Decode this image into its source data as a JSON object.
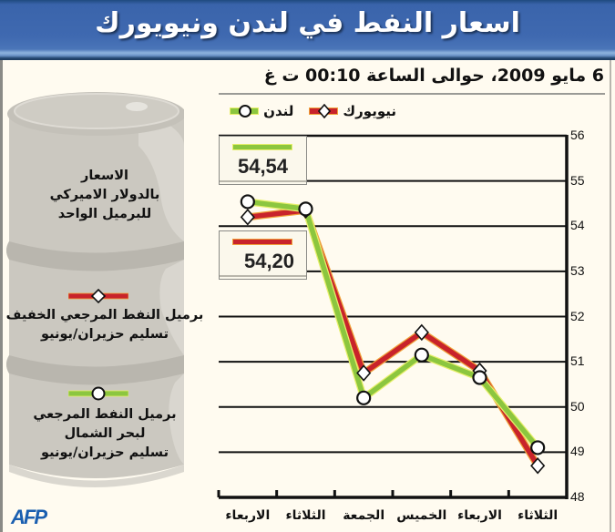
{
  "header": {
    "title": "اسعار النفط في لندن ونيويورك",
    "subtitle": "6 مايو 2009، حوالى الساعة 00:10 ت غ"
  },
  "legend": {
    "newyork_label": "نيويورك",
    "london_label": "لندن"
  },
  "barrel": {
    "units_line1": "الاسعار",
    "units_line2": "بالدولار الاميركي",
    "units_line3": "للبرميل الواحد",
    "light_line1": "برميل النفط المرجعي الخفيف",
    "light_line2": "تسليم حزيران/يونيو",
    "brent_line1": "برميل النفط المرجعي",
    "brent_line2": "لبحر الشمال",
    "brent_line3": "تسليم حزيران/يونيو"
  },
  "value_boxes": {
    "london_value": "54,54",
    "newyork_value": "54,20"
  },
  "source": "AFP",
  "colors": {
    "title_bar": "#3f69b0",
    "background": "#fffbf0",
    "london_line": "#8cc63f",
    "newyork_line": "#c8232b",
    "barrel": "#c9c6be"
  },
  "chart_data": {
    "type": "line",
    "title": "اسعار النفط في لندن ونيويورك",
    "subtitle": "6 مايو 2009، حوالى الساعة 00:10 ت غ",
    "xlabel": "",
    "ylabel": "الاسعار بالدولار الاميركي للبرميل الواحد",
    "x_direction": "right-to-left",
    "categories": [
      "الثلاثاء",
      "الاربعاء",
      "الخميس",
      "الجمعة",
      "الثلاثاء",
      "الاربعاء"
    ],
    "series": [
      {
        "name": "لندن",
        "description": "برميل النفط المرجعي لبحر الشمال تسليم حزيران/يونيو",
        "marker": "circle",
        "color": "#8cc63f",
        "values": [
          49.1,
          50.65,
          51.15,
          50.2,
          54.38,
          54.54
        ]
      },
      {
        "name": "نيويورك",
        "description": "برميل النفط المرجعي الخفيف تسليم حزيران/يونيو",
        "marker": "diamond",
        "color": "#c8232b",
        "values": [
          48.7,
          50.8,
          51.65,
          50.75,
          54.35,
          54.2
        ]
      }
    ],
    "yticks": [
      48,
      49,
      50,
      51,
      52,
      53,
      54,
      55,
      56
    ],
    "ylim": [
      48,
      56
    ],
    "grid": true,
    "y_axis_position": "right",
    "annotations": [
      {
        "text": "54,54",
        "series": "لندن"
      },
      {
        "text": "54,20",
        "series": "نيويورك"
      }
    ]
  }
}
